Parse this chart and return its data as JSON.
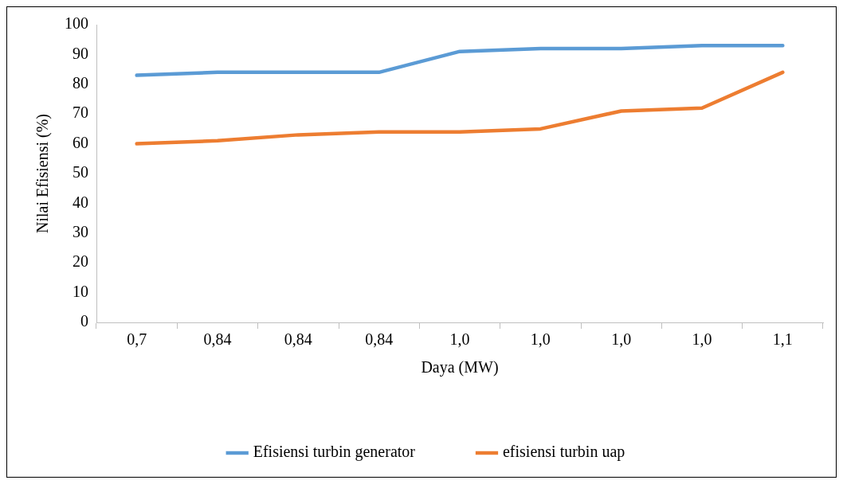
{
  "chart_data": {
    "type": "line",
    "xlabel": "Daya (MW)",
    "ylabel": "Nilai Efisiensi (%)",
    "categories": [
      "0,7",
      "0,84",
      "0,84",
      "0,84",
      "1,0",
      "1,0",
      "1,0",
      "1,0",
      "1,1"
    ],
    "series": [
      {
        "name": "Efisiensi turbin generator",
        "color": "#5b9bd5",
        "values": [
          83,
          84,
          84,
          84,
          91,
          92,
          92,
          93,
          93
        ]
      },
      {
        "name": "efisiensi turbin uap",
        "color": "#ed7d31",
        "values": [
          60,
          61,
          63,
          64,
          64,
          65,
          71,
          72,
          84
        ]
      }
    ],
    "ylim": [
      0,
      100
    ],
    "yticks": [
      0,
      10,
      20,
      30,
      40,
      50,
      60,
      70,
      80,
      90,
      100
    ],
    "legend": "bottom",
    "marker": "none",
    "line_style": "solid"
  }
}
